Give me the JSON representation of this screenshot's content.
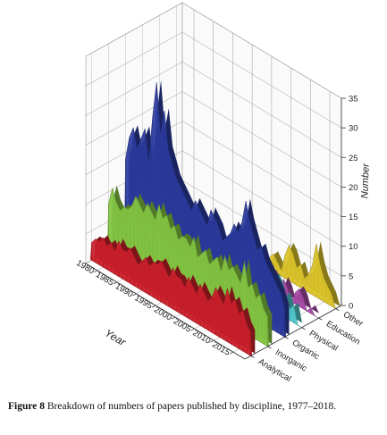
{
  "caption": {
    "label": "Figure 8",
    "text": "Breakdown of numbers of papers published by discipline, 1977–2018."
  },
  "chart_data": {
    "type": "area",
    "subtype": "3d-wall",
    "xlabel": "Year",
    "zlabel": "Number",
    "x_ticks": [
      "1980",
      "1985",
      "1990",
      "1995",
      "2000",
      "2005",
      "2010",
      "2015"
    ],
    "z_ticks": [
      "0",
      "5",
      "10",
      "15",
      "20",
      "25",
      "30",
      "35"
    ],
    "xlim": [
      1977,
      2018
    ],
    "zlim": [
      0,
      35
    ],
    "grid": true,
    "colors": {
      "Analytical": "#c8202a",
      "Inorganic": "#82c341",
      "Organic": "#2a3a9c",
      "Physical": "#4fc3c8",
      "Education": "#a349a4",
      "Other": "#d9c22a"
    },
    "x": [
      1977,
      1978,
      1979,
      1980,
      1981,
      1982,
      1983,
      1984,
      1985,
      1986,
      1987,
      1988,
      1989,
      1990,
      1991,
      1992,
      1993,
      1994,
      1995,
      1996,
      1997,
      1998,
      1999,
      2000,
      2001,
      2002,
      2003,
      2004,
      2005,
      2006,
      2007,
      2008,
      2009,
      2010,
      2011,
      2012,
      2013,
      2014,
      2015,
      2016,
      2017,
      2018
    ],
    "series": [
      {
        "name": "Analytical",
        "values": [
          3,
          4,
          4,
          5,
          4,
          5,
          4,
          6,
          5,
          5,
          6,
          5,
          4,
          5,
          6,
          5,
          6,
          6,
          7,
          6,
          5,
          7,
          6,
          6,
          5,
          7,
          6,
          5,
          7,
          6,
          5,
          6,
          8,
          7,
          6,
          9,
          7,
          8,
          6,
          7,
          5,
          4
        ]
      },
      {
        "name": "Inorganic",
        "values": [
          8,
          11,
          9,
          8,
          9,
          9,
          10,
          12,
          11,
          10,
          12,
          11,
          10,
          13,
          11,
          12,
          10,
          11,
          9,
          10,
          10,
          9,
          11,
          8,
          9,
          10,
          8,
          9,
          10,
          8,
          11,
          9,
          10,
          9,
          8,
          12,
          8,
          9,
          7,
          8,
          6,
          5
        ]
      },
      {
        "name": "Organic",
        "values": [
          14,
          18,
          20,
          17,
          19,
          21,
          16,
          24,
          30,
          22,
          26,
          20,
          18,
          16,
          15,
          14,
          13,
          12,
          14,
          13,
          12,
          11,
          14,
          13,
          12,
          10,
          11,
          12,
          14,
          13,
          15,
          19,
          16,
          14,
          12,
          13,
          11,
          10,
          9,
          8,
          7,
          5
        ]
      },
      {
        "name": "Physical",
        "values": [
          0,
          0,
          0,
          0,
          0,
          0,
          0,
          0,
          0,
          0,
          0,
          0,
          0,
          4,
          6,
          5,
          4,
          5,
          6,
          3,
          4,
          5,
          3,
          2,
          4,
          3,
          5,
          4,
          3,
          2,
          4,
          3,
          2,
          4,
          6,
          5,
          3,
          4,
          2,
          3,
          0,
          0
        ]
      },
      {
        "name": "Education",
        "values": [
          0,
          0,
          0,
          0,
          0,
          0,
          0,
          0,
          0,
          0,
          0,
          0,
          0,
          0,
          0,
          0,
          0,
          0,
          0,
          0,
          0,
          0,
          0,
          0,
          0,
          0,
          0,
          0,
          2,
          3,
          2,
          1,
          3,
          2,
          0,
          2,
          3,
          2,
          0,
          1,
          0,
          0
        ]
      },
      {
        "name": "Other",
        "values": [
          0,
          0,
          0,
          0,
          0,
          0,
          0,
          0,
          0,
          0,
          0,
          0,
          0,
          0,
          0,
          0,
          0,
          0,
          0,
          3,
          1,
          2,
          1,
          0,
          2,
          3,
          2,
          1,
          4,
          6,
          5,
          3,
          4,
          2,
          3,
          5,
          9,
          6,
          4,
          3,
          2,
          0
        ]
      }
    ]
  }
}
